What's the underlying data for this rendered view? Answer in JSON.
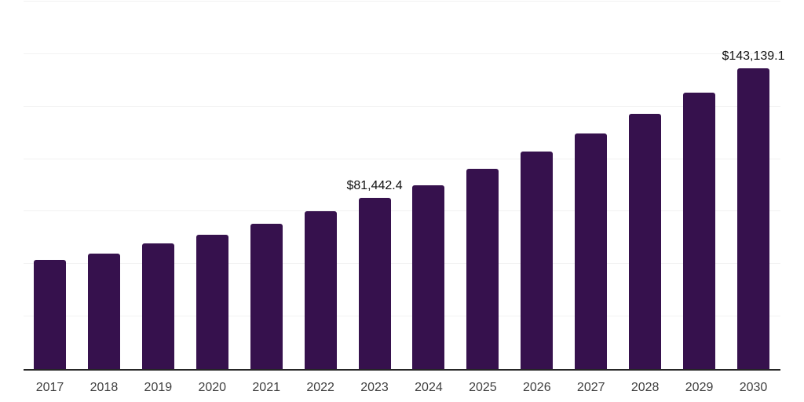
{
  "chart_data": {
    "type": "bar",
    "title": "",
    "xlabel": "",
    "ylabel": "",
    "categories": [
      "2017",
      "2018",
      "2019",
      "2020",
      "2021",
      "2022",
      "2023",
      "2024",
      "2025",
      "2026",
      "2027",
      "2028",
      "2029",
      "2030"
    ],
    "values": [
      51800,
      55100,
      60000,
      64100,
      69300,
      75300,
      81442.4,
      87600,
      95400,
      103600,
      112200,
      121500,
      131500,
      143139.1
    ],
    "value_labels": [
      "",
      "",
      "",
      "",
      "",
      "",
      "$81,442.4",
      "",
      "",
      "",
      "",
      "",
      "",
      "$143,139.1"
    ],
    "ylim": [
      0,
      175000
    ],
    "gridline_step": 25000,
    "grid": "horizontal-only",
    "y_tick_labels_shown": false,
    "legend": "none",
    "colors": {
      "bar": "#36114d",
      "gridline": "#f2f2f2",
      "axis": "#262626",
      "year_label": "#404040",
      "value_label": "#111111",
      "background": "#ffffff"
    }
  }
}
